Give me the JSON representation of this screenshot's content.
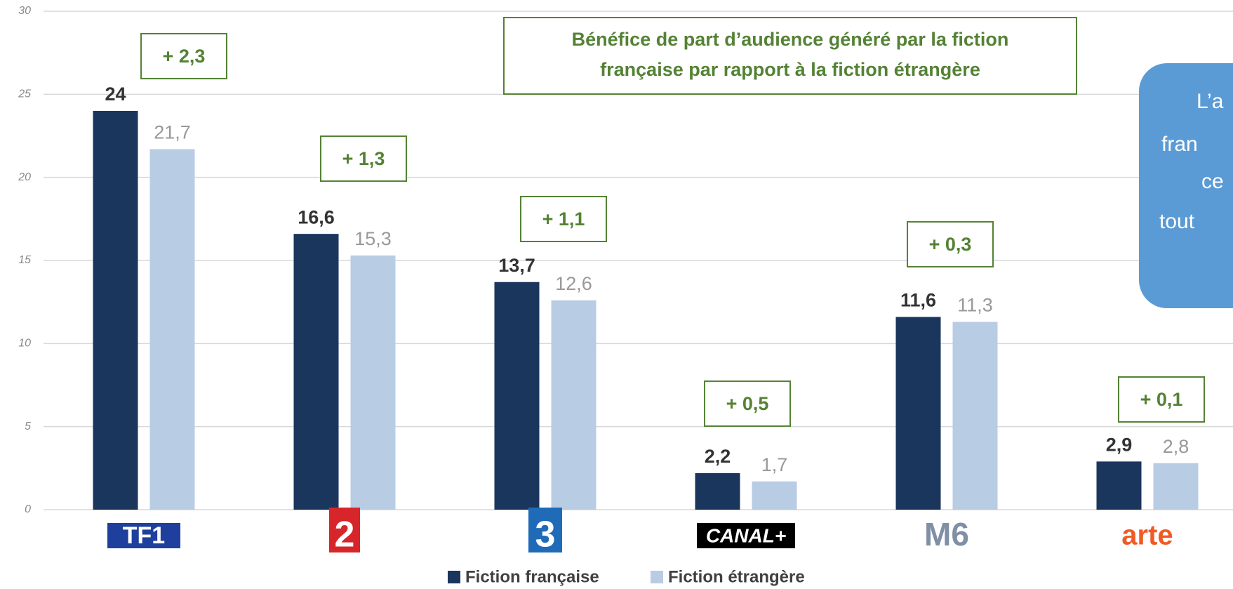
{
  "chart_data": {
    "type": "bar",
    "title_lines": [
      "Bénéfice de part d’audience généré par la fiction",
      "française par rapport à la fiction étrangère"
    ],
    "categories": [
      "TF1",
      "2",
      "3",
      "CANAL+",
      "M6",
      "arte"
    ],
    "series": [
      {
        "name": "Fiction française",
        "color": "#1b365d",
        "values": [
          24,
          16.6,
          13.7,
          2.2,
          11.6,
          2.9
        ],
        "value_labels": [
          "24",
          "16,6",
          "13,7",
          "2,2",
          "11,6",
          "2,9"
        ]
      },
      {
        "name": "Fiction étrangère",
        "color": "#b8cce4",
        "values": [
          21.7,
          15.3,
          12.6,
          1.7,
          11.3,
          2.8
        ],
        "value_labels": [
          "21,7",
          "15,3",
          "12,6",
          "1,7",
          "11,3",
          "2,8"
        ]
      }
    ],
    "differences": [
      2.3,
      1.3,
      1.1,
      0.5,
      0.3,
      0.1
    ],
    "difference_labels": [
      "+ 2,3",
      "+ 1,3",
      "+ 1,1",
      "+ 0,5",
      "+ 0,3",
      "+ 0,1"
    ],
    "callout_lines": [
      "L’a",
      "fran",
      "ce",
      "tout"
    ],
    "ylim": [
      0,
      30
    ],
    "yticks": [
      0,
      5,
      10,
      15,
      20,
      25,
      30
    ],
    "grid": true
  }
}
